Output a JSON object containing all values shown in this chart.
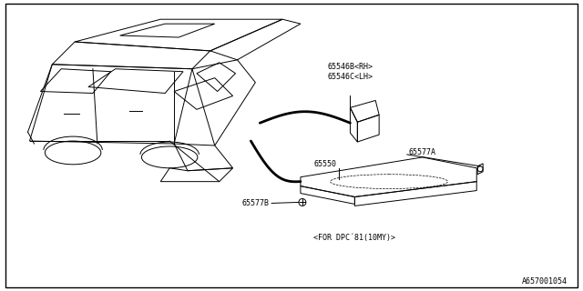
{
  "background_color": "#ffffff",
  "border_color": "#000000",
  "footer_code": "A657001054",
  "line_color": "#000000",
  "text_color": "#000000",
  "label_65546": "65546B<RH>\n65546C<LH>",
  "label_65550": "65550",
  "label_65577A": "65577A",
  "label_65577B": "65577B",
  "label_dpc": "<FOR DPC´81(10MY)>"
}
